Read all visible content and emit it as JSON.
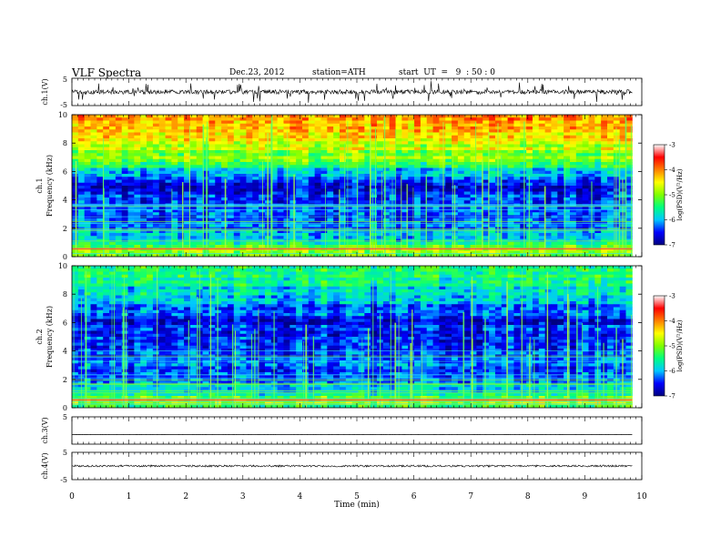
{
  "header": {
    "title": "VLF  Spectra",
    "date": "Dec.23, 2012",
    "station": "station=ATH",
    "start": "start  UT  =   9  : 50 : 0"
  },
  "chart_data": [
    {
      "type": "line",
      "panel": "ch1-waveform",
      "ylabel": "ch.1(V)",
      "ylim": [
        -5,
        5
      ],
      "yticks": [
        "5",
        "-5"
      ],
      "baseline": 0.0,
      "noise_amplitude": 0.8,
      "spike_amplitude": 4.0,
      "color": "#000000"
    },
    {
      "type": "heatmap",
      "panel": "ch1-spectrogram",
      "ylabel": "ch.1\nFrequency  (kHz)",
      "ylabel_lines": [
        "ch.1",
        "Frequency  (kHz)"
      ],
      "ylim": [
        0,
        10
      ],
      "yticks": [
        "0",
        "2",
        "4",
        "6",
        "8",
        "10"
      ],
      "colorbar": {
        "label": "log(PSD)(V²/Hz)",
        "range": [
          -7,
          -3
        ],
        "ticks": [
          "-3",
          "-4",
          "-5",
          "-6",
          "-7"
        ],
        "colors": [
          "#000080",
          "#0000ff",
          "#00c8ff",
          "#00ff80",
          "#80ff00",
          "#ffff00",
          "#ff8000",
          "#ff0000",
          "#ffffff"
        ]
      },
      "profile_khz": [
        0,
        0.5,
        1,
        2,
        3,
        4,
        5,
        5.5,
        6,
        6.5,
        7,
        8,
        9,
        10
      ],
      "profile_logpsd": [
        -5.2,
        -4.6,
        -5.6,
        -6.3,
        -6.3,
        -6.5,
        -6.6,
        -6.2,
        -6.0,
        -5.3,
        -5.0,
        -4.7,
        -4.3,
        -4.0
      ]
    },
    {
      "type": "heatmap",
      "panel": "ch2-spectrogram",
      "ylabel": "ch.2\nFrequency  (kHz)",
      "ylabel_lines": [
        "ch.2",
        "Frequency  (kHz)"
      ],
      "ylim": [
        0,
        10
      ],
      "yticks": [
        "0",
        "2",
        "4",
        "6",
        "8",
        "10"
      ],
      "colorbar": {
        "label": "log(PSD)(V²/Hz)",
        "range": [
          -7,
          -3
        ],
        "ticks": [
          "-3",
          "-4",
          "-5",
          "-6",
          "-7"
        ],
        "colors": [
          "#000080",
          "#0000ff",
          "#00c8ff",
          "#00ff80",
          "#80ff00",
          "#ffff00",
          "#ff8000",
          "#ff0000",
          "#ffffff"
        ]
      },
      "profile_khz": [
        0,
        0.5,
        1,
        2,
        3,
        4,
        5,
        6,
        7,
        8,
        9,
        10
      ],
      "profile_logpsd": [
        -5.4,
        -4.8,
        -5.7,
        -6.2,
        -6.3,
        -6.3,
        -6.4,
        -6.6,
        -6.2,
        -5.9,
        -5.6,
        -5.4
      ]
    },
    {
      "type": "line",
      "panel": "ch3-waveform",
      "ylabel": "ch.3(V)",
      "ylim": [
        -5,
        5
      ],
      "yticks": [
        "5"
      ],
      "baseline": -1.5,
      "noise_amplitude": 0.03,
      "spike_amplitude": 0.0,
      "color": "#000000"
    },
    {
      "type": "line",
      "panel": "ch4-waveform",
      "ylabel": "ch.4(V)",
      "ylim": [
        -5,
        5
      ],
      "yticks": [
        "5",
        "-5"
      ],
      "baseline": 0.0,
      "noise_amplitude": 0.35,
      "spike_amplitude": 0.0,
      "color": "#000000"
    }
  ],
  "xaxis": {
    "label": "Time  (min)",
    "xlim": [
      0,
      10
    ],
    "data_end": 9.83,
    "ticks": [
      "0",
      "1",
      "2",
      "3",
      "4",
      "5",
      "6",
      "7",
      "8",
      "9",
      "10"
    ]
  }
}
